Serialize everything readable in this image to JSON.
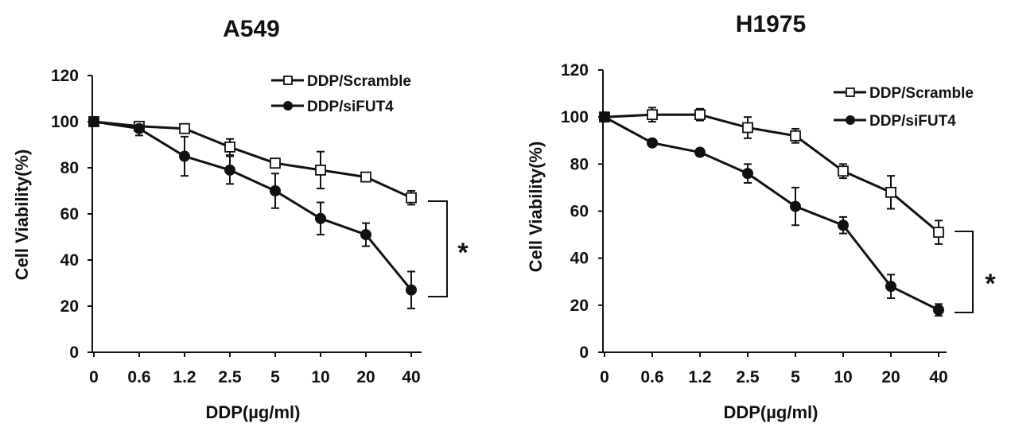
{
  "colors": {
    "ink": "#111111",
    "open_marker_fill": "#ffffff",
    "filled_marker_fill": "#111111"
  },
  "chart_data": [
    {
      "type": "line",
      "title": "A549",
      "xlabel": "DDP(µg/ml)",
      "ylabel": "Cell Viability(%)",
      "categories": [
        "0",
        "0.6",
        "1.2",
        "2.5",
        "5",
        "10",
        "20",
        "40"
      ],
      "ylim": [
        0,
        120
      ],
      "yticks": [
        "0",
        "20",
        "40",
        "60",
        "80",
        "100",
        "120"
      ],
      "grid": false,
      "legend_position": "top-right",
      "series": [
        {
          "name": "DDP/Scramble",
          "marker": "open-square",
          "values": [
            100,
            98,
            97,
            89,
            82,
            79,
            76,
            67
          ],
          "errors": [
            0,
            1.5,
            2,
            3.5,
            2,
            8,
            1.5,
            3
          ]
        },
        {
          "name": "DDP/siFUT4",
          "marker": "filled-circle",
          "values": [
            100,
            97,
            85,
            79,
            70,
            58,
            51,
            27
          ],
          "errors": [
            0,
            3,
            8.5,
            6,
            7.5,
            7,
            5,
            8
          ]
        }
      ],
      "annotation": "*"
    },
    {
      "type": "line",
      "title": "H1975",
      "xlabel": "DDP(µg/ml)",
      "ylabel": "Cell Viability(%)",
      "categories": [
        "0",
        "0.6",
        "1.2",
        "2.5",
        "5",
        "10",
        "20",
        "40"
      ],
      "ylim": [
        0,
        120
      ],
      "yticks": [
        "0",
        "20",
        "40",
        "60",
        "80",
        "100",
        "120"
      ],
      "grid": false,
      "legend_position": "top-right",
      "series": [
        {
          "name": "DDP/Scramble",
          "marker": "open-square",
          "values": [
            100,
            101,
            101,
            95.5,
            92,
            77,
            68,
            51
          ],
          "errors": [
            0,
            3,
            2.5,
            4.5,
            3,
            3,
            7,
            5
          ]
        },
        {
          "name": "DDP/siFUT4",
          "marker": "filled-circle",
          "values": [
            100,
            89,
            85,
            76,
            62,
            54,
            28,
            18
          ],
          "errors": [
            0,
            1.5,
            1.5,
            4,
            8,
            3.5,
            5,
            2.5
          ]
        }
      ],
      "annotation": "*"
    }
  ]
}
